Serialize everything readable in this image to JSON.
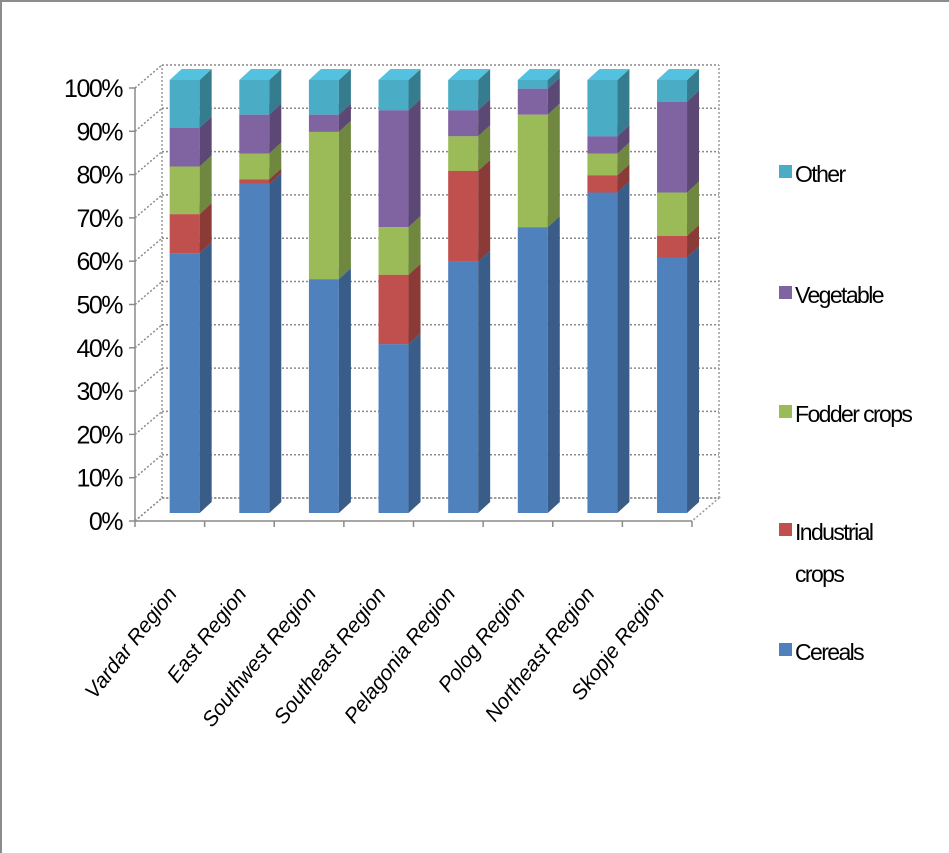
{
  "chart_data": {
    "type": "bar",
    "stacked": true,
    "percent_stacked": true,
    "three_d": true,
    "title": "",
    "xlabel": "",
    "ylabel": "",
    "ylim": [
      0,
      100
    ],
    "yticks": [
      "0%",
      "10%",
      "20%",
      "30%",
      "40%",
      "50%",
      "60%",
      "70%",
      "80%",
      "90%",
      "100%"
    ],
    "categories": [
      "Vardar Region",
      "East Region",
      "Southwest Region",
      "Southeast Region",
      "Pelagonia Region",
      "Polog Region",
      "Northeast Region",
      "Skopje Region"
    ],
    "series": [
      {
        "name": "Cereals",
        "color": "#4f81bd",
        "values": [
          60,
          76,
          54,
          39,
          58,
          66,
          74,
          59
        ]
      },
      {
        "name": "Industrial crops",
        "color": "#c0504d",
        "values": [
          9,
          1,
          0,
          16,
          21,
          0,
          4,
          5
        ]
      },
      {
        "name": "Fodder crops",
        "color": "#9bbb59",
        "values": [
          11,
          6,
          34,
          11,
          8,
          26,
          5,
          10
        ]
      },
      {
        "name": "Vegetable",
        "color": "#8064a2",
        "values": [
          9,
          9,
          4,
          27,
          6,
          6,
          4,
          21
        ]
      },
      {
        "name": "Other",
        "color": "#4bacc6",
        "values": [
          11,
          8,
          8,
          7,
          7,
          2,
          13,
          5
        ]
      }
    ],
    "legend_position": "right",
    "legend_order": [
      "Other",
      "Vegetable",
      "Fodder crops",
      "Industrial crops",
      "Cereals"
    ],
    "grid": true
  }
}
